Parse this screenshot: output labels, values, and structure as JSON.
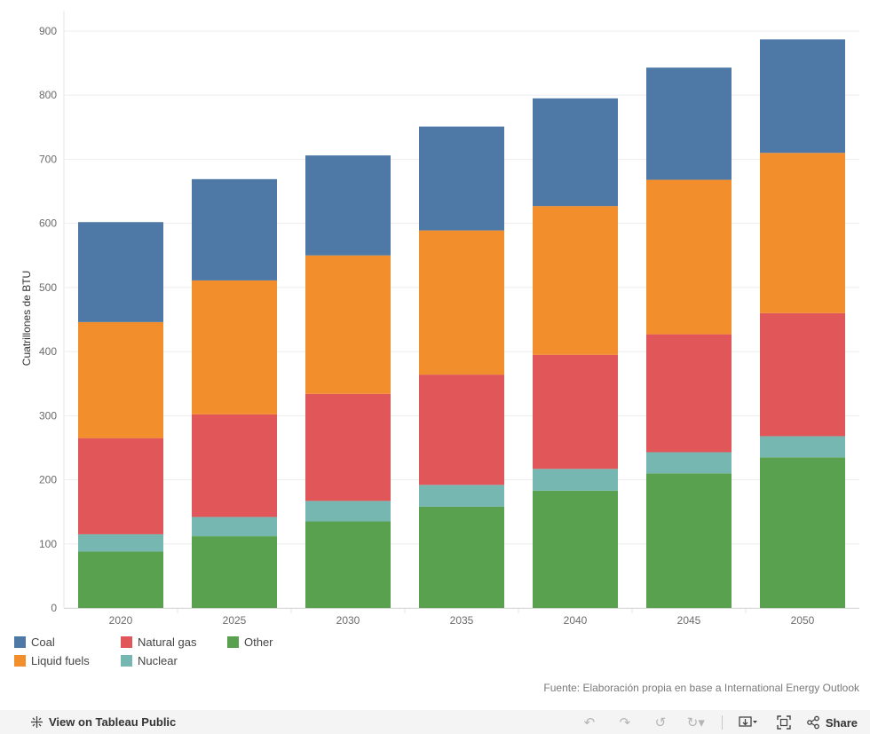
{
  "chart_data": {
    "type": "bar",
    "stacked": true,
    "categories": [
      "2020",
      "2025",
      "2030",
      "2035",
      "2040",
      "2045",
      "2050"
    ],
    "series": [
      {
        "name": "Other",
        "color": "#59a14f",
        "values": [
          88,
          112,
          135,
          158,
          183,
          210,
          235
        ]
      },
      {
        "name": "Nuclear",
        "color": "#76b7b2",
        "values": [
          27,
          30,
          32,
          34,
          34,
          33,
          33
        ]
      },
      {
        "name": "Natural gas",
        "color": "#e15759",
        "values": [
          150,
          160,
          167,
          172,
          178,
          184,
          192
        ]
      },
      {
        "name": "Liquid fuels",
        "color": "#f28e2b",
        "values": [
          181,
          209,
          216,
          225,
          232,
          241,
          250
        ]
      },
      {
        "name": "Coal",
        "color": "#4e79a7",
        "values": [
          156,
          158,
          156,
          162,
          168,
          175,
          177
        ]
      }
    ],
    "ylabel": "Cuatrillones de BTU",
    "xlabel": "",
    "ylim": [
      0,
      900
    ],
    "yticks": [
      "0",
      "100",
      "200",
      "300",
      "400",
      "500",
      "600",
      "700",
      "800",
      "900"
    ],
    "grid": true
  },
  "legend": {
    "items": [
      {
        "label": "Coal",
        "color": "#4e79a7"
      },
      {
        "label": "Natural gas",
        "color": "#e15759"
      },
      {
        "label": "Other",
        "color": "#59a14f"
      },
      {
        "label": "Liquid fuels",
        "color": "#f28e2b"
      },
      {
        "label": "Nuclear",
        "color": "#76b7b2"
      }
    ]
  },
  "source_text": "Fuente: Elaboración propia en base a International Energy Outlook",
  "footer": {
    "view_label": "View on Tableau Public",
    "share_label": "Share",
    "icons": [
      "undo-icon",
      "redo-icon",
      "revert-icon",
      "refresh-icon",
      "download-icon",
      "fullscreen-icon",
      "share-icon"
    ]
  }
}
